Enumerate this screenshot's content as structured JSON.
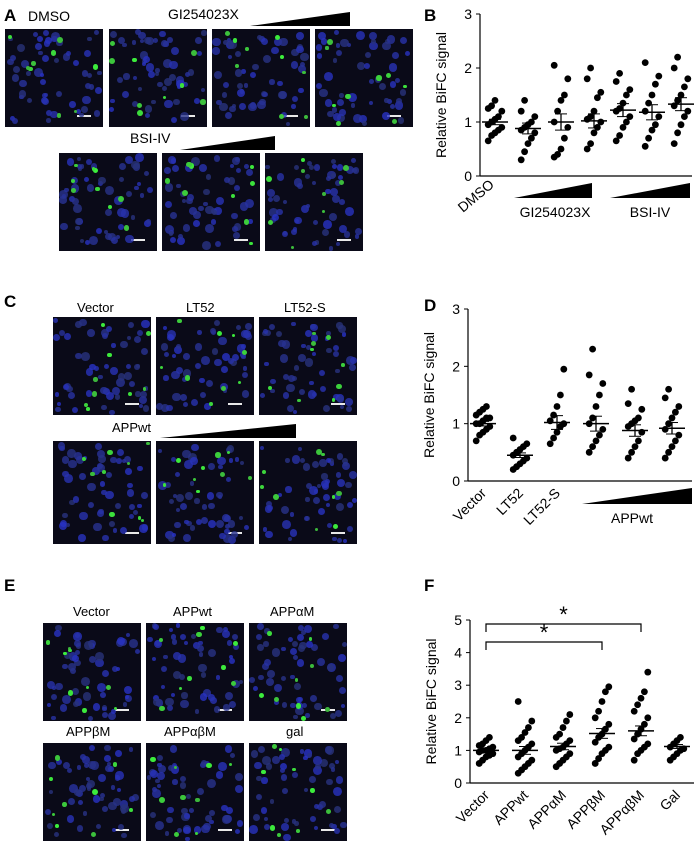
{
  "panels": {
    "a": {
      "label": "A",
      "dmso": "DMSO",
      "inhibitor1": "GI254023X",
      "inhibitor2": "BSI-IV"
    },
    "b": {
      "label": "B"
    },
    "c": {
      "label": "C",
      "vector": "Vector",
      "lt52": "LT52",
      "lt52s": "LT52-S",
      "appwt": "APPwt"
    },
    "d": {
      "label": "D"
    },
    "e": {
      "label": "E",
      "vector": "Vector",
      "appwt": "APPwt",
      "appam": "APPαM",
      "appbm": "APPβM",
      "appabm": "APPαβM",
      "gal": "gal"
    },
    "f": {
      "label": "F"
    }
  },
  "chart_data": [
    {
      "type": "scatter",
      "panel": "B",
      "ylabel": "Relative BiFC signal",
      "ylim": [
        0,
        3
      ],
      "yticks": [
        "0",
        "1",
        "2",
        "3"
      ],
      "xlabel_text": [
        "DMSO",
        "GI254023X",
        "BSI-IV"
      ],
      "groups": [
        {
          "mean": 1.0,
          "sem": 0.05,
          "points": [
            0.65,
            0.75,
            0.8,
            0.85,
            0.9,
            0.95,
            1.0,
            1.05,
            1.1,
            1.2,
            1.25,
            1.3,
            1.4
          ]
        },
        {
          "mean": 0.88,
          "sem": 0.1,
          "points": [
            0.3,
            0.45,
            0.6,
            0.7,
            0.8,
            0.85,
            0.9,
            0.95,
            1.0,
            1.1,
            1.2,
            1.4
          ]
        },
        {
          "mean": 1.0,
          "sem": 0.15,
          "points": [
            0.35,
            0.4,
            0.5,
            0.7,
            0.9,
            1.0,
            1.2,
            1.4,
            1.5,
            1.8,
            2.05
          ]
        },
        {
          "mean": 1.02,
          "sem": 0.13,
          "points": [
            0.5,
            0.6,
            0.8,
            0.9,
            1.0,
            1.05,
            1.1,
            1.2,
            1.45,
            1.55,
            1.8,
            2.0
          ]
        },
        {
          "mean": 1.22,
          "sem": 0.12,
          "points": [
            0.65,
            0.75,
            0.9,
            1.0,
            1.1,
            1.2,
            1.25,
            1.35,
            1.5,
            1.6,
            1.75,
            1.9
          ]
        },
        {
          "mean": 1.18,
          "sem": 0.14,
          "points": [
            0.55,
            0.7,
            0.85,
            0.95,
            1.1,
            1.2,
            1.35,
            1.5,
            1.7,
            1.85,
            2.1
          ]
        },
        {
          "mean": 1.33,
          "sem": 0.12,
          "points": [
            0.6,
            0.8,
            0.95,
            1.1,
            1.2,
            1.3,
            1.4,
            1.5,
            1.65,
            1.8,
            2.0,
            2.2
          ]
        }
      ]
    },
    {
      "type": "scatter",
      "panel": "D",
      "ylabel": "Relative BiFC signal",
      "ylim": [
        0,
        3
      ],
      "yticks": [
        "0",
        "1",
        "2",
        "3"
      ],
      "categories": [
        "Vector",
        "LT52",
        "LT52-S"
      ],
      "group_label": "APPwt",
      "groups": [
        {
          "mean": 1.0,
          "sem": 0.04,
          "points": [
            0.7,
            0.8,
            0.85,
            0.9,
            0.95,
            1.0,
            1.0,
            1.05,
            1.1,
            1.1,
            1.15,
            1.2,
            1.25,
            1.3
          ]
        },
        {
          "mean": 0.45,
          "sem": 0.04,
          "points": [
            0.2,
            0.25,
            0.3,
            0.35,
            0.4,
            0.45,
            0.5,
            0.55,
            0.6,
            0.65,
            0.75
          ]
        },
        {
          "mean": 1.02,
          "sem": 0.12,
          "points": [
            0.65,
            0.75,
            0.85,
            0.95,
            1.0,
            1.05,
            1.15,
            1.3,
            1.5,
            1.95
          ]
        },
        {
          "mean": 1.0,
          "sem": 0.13,
          "points": [
            0.5,
            0.6,
            0.7,
            0.8,
            0.9,
            1.0,
            1.1,
            1.3,
            1.5,
            1.7,
            1.85,
            2.3
          ]
        },
        {
          "mean": 0.88,
          "sem": 0.1,
          "points": [
            0.4,
            0.5,
            0.6,
            0.7,
            0.85,
            0.95,
            1.0,
            1.05,
            1.1,
            1.25,
            1.35,
            1.6
          ]
        },
        {
          "mean": 0.92,
          "sem": 0.1,
          "points": [
            0.4,
            0.5,
            0.6,
            0.7,
            0.8,
            0.9,
            1.0,
            1.1,
            1.2,
            1.3,
            1.45,
            1.6
          ]
        }
      ]
    },
    {
      "type": "scatter",
      "panel": "F",
      "ylabel": "Relative BiFC signal",
      "ylim": [
        0,
        5
      ],
      "yticks": [
        "0",
        "1",
        "2",
        "3",
        "4",
        "5"
      ],
      "categories": [
        "Vector",
        "APPwt",
        "APPαM",
        "APPβM",
        "APPαβM",
        "Gal"
      ],
      "significance": [
        {
          "from": 0,
          "to": 3,
          "label": "*"
        },
        {
          "from": 0,
          "to": 4,
          "label": "*"
        }
      ],
      "groups": [
        {
          "mean": 1.0,
          "sem": 0.05,
          "points": [
            0.6,
            0.7,
            0.8,
            0.85,
            0.9,
            0.95,
            1.0,
            1.0,
            1.05,
            1.1,
            1.15,
            1.2,
            1.3,
            1.4
          ]
        },
        {
          "mean": 1.0,
          "sem": 0.12,
          "points": [
            0.3,
            0.4,
            0.5,
            0.6,
            0.7,
            0.8,
            0.9,
            1.0,
            1.1,
            1.2,
            1.3,
            1.4,
            1.55,
            1.7,
            1.9,
            2.5
          ]
        },
        {
          "mean": 1.12,
          "sem": 0.1,
          "points": [
            0.5,
            0.6,
            0.7,
            0.8,
            0.9,
            1.0,
            1.05,
            1.1,
            1.2,
            1.3,
            1.4,
            1.5,
            1.7,
            1.9,
            2.1
          ]
        },
        {
          "mean": 1.52,
          "sem": 0.15,
          "points": [
            0.6,
            0.75,
            0.9,
            1.0,
            1.1,
            1.25,
            1.4,
            1.5,
            1.65,
            1.8,
            2.0,
            2.2,
            2.5,
            2.8,
            2.95
          ]
        },
        {
          "mean": 1.6,
          "sem": 0.15,
          "points": [
            0.7,
            0.9,
            1.0,
            1.1,
            1.2,
            1.35,
            1.5,
            1.65,
            1.8,
            2.0,
            2.2,
            2.4,
            2.6,
            2.8,
            3.4
          ]
        },
        {
          "mean": 1.12,
          "sem": 0.06,
          "points": [
            0.7,
            0.8,
            0.9,
            1.0,
            1.05,
            1.1,
            1.2,
            1.3,
            1.4
          ]
        }
      ]
    }
  ]
}
